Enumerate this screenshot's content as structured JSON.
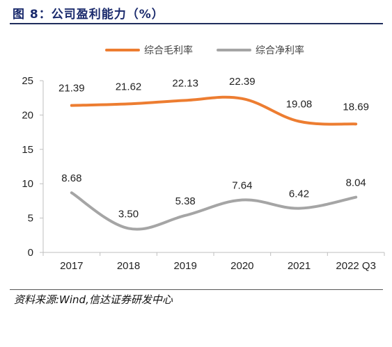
{
  "figure": {
    "title": "图 8：公司盈利能力（%）",
    "source": "资料来源:Wind,信达证券研发中心"
  },
  "chart_data": {
    "type": "line",
    "categories": [
      "2017",
      "2018",
      "2019",
      "2020",
      "2021",
      "2022 Q3"
    ],
    "series": [
      {
        "name": "综合毛利率",
        "values": [
          21.39,
          21.62,
          22.13,
          22.39,
          19.08,
          18.69
        ],
        "color": "#ed7d31"
      },
      {
        "name": "综合净利率",
        "values": [
          8.68,
          3.5,
          5.38,
          7.64,
          6.42,
          8.04
        ],
        "color": "#a5a5a5"
      }
    ],
    "ylim": [
      0,
      25
    ],
    "yticks": [
      0,
      5,
      10,
      15,
      20,
      25
    ],
    "legend": "top-center",
    "grid": false,
    "data_labels": true
  }
}
